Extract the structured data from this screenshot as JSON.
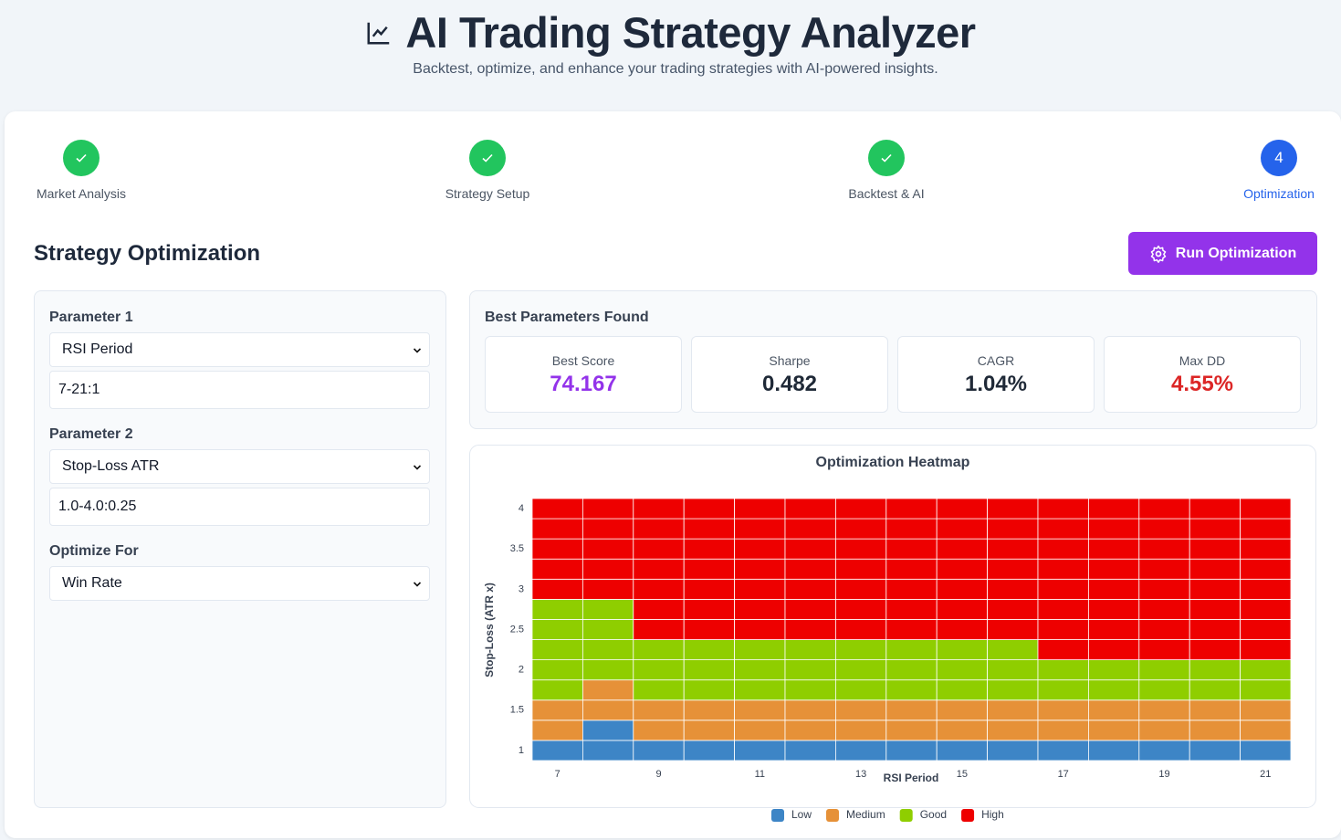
{
  "header": {
    "title": "AI Trading Strategy Analyzer",
    "subtitle": "Backtest, optimize, and enhance your trading strategies with AI-powered insights."
  },
  "steps": [
    {
      "label": "Market Analysis",
      "done": true
    },
    {
      "label": "Strategy Setup",
      "done": true
    },
    {
      "label": "Backtest & AI",
      "done": true
    },
    {
      "label": "Optimization",
      "done": false,
      "number": 4
    }
  ],
  "section": {
    "title": "Strategy Optimization",
    "button": "Run Optimization"
  },
  "form": {
    "fields": [
      {
        "label": "Parameter 1",
        "select": "RSI Period",
        "range": "7-21:1"
      },
      {
        "label": "Parameter 2",
        "select": "Stop-Loss ATR",
        "range": "1.0-4.0:0.25"
      },
      {
        "label": "Optimize For",
        "select": "Win Rate"
      }
    ]
  },
  "best": {
    "title": "Best Parameters Found",
    "metrics": [
      {
        "label": "Best Score",
        "value": "74.167",
        "color": "#9333ea"
      },
      {
        "label": "Sharpe",
        "value": "0.482",
        "color": "#1f2937"
      },
      {
        "label": "CAGR",
        "value": "1.04%",
        "color": "#1f2937"
      },
      {
        "label": "Max DD",
        "value": "4.55%",
        "color": "#dc2626"
      }
    ]
  },
  "chart_data": {
    "type": "heatmap",
    "title": "Optimization Heatmap",
    "x_label": "RSI Period",
    "y_label": "Stop-Loss (ATR x)",
    "x": [
      7,
      8,
      9,
      10,
      11,
      12,
      13,
      14,
      15,
      16,
      17,
      18,
      19,
      20,
      21
    ],
    "y": [
      1,
      1.25,
      1.5,
      1.75,
      2,
      2.25,
      2.5,
      2.75,
      3,
      3.25,
      3.5,
      3.75,
      4
    ],
    "xlim": [
      6.5,
      21.5
    ],
    "xticks": [
      7,
      9,
      11,
      13,
      15,
      17,
      19,
      21
    ],
    "ylim": [
      0.875,
      4.125
    ],
    "yticks": [
      1,
      1.5,
      2,
      2.5,
      3,
      3.5,
      4
    ],
    "levels": [
      {
        "name": "Low",
        "color": "#3d85c6"
      },
      {
        "name": "Medium",
        "color": "#e69138"
      },
      {
        "name": "Good",
        "color": "#8fce00"
      },
      {
        "name": "High",
        "color": "#ee0000"
      }
    ],
    "values": [
      [
        "Low",
        "Low",
        "Low",
        "Low",
        "Low",
        "Low",
        "Low",
        "Low",
        "Low",
        "Low",
        "Low",
        "Low",
        "Low",
        "Low",
        "Low"
      ],
      [
        "Medium",
        "Low",
        "Medium",
        "Medium",
        "Medium",
        "Medium",
        "Medium",
        "Medium",
        "Medium",
        "Medium",
        "Medium",
        "Medium",
        "Medium",
        "Medium",
        "Medium"
      ],
      [
        "Medium",
        "Medium",
        "Medium",
        "Medium",
        "Medium",
        "Medium",
        "Medium",
        "Medium",
        "Medium",
        "Medium",
        "Medium",
        "Medium",
        "Medium",
        "Medium",
        "Medium"
      ],
      [
        "Good",
        "Medium",
        "Good",
        "Good",
        "Good",
        "Good",
        "Good",
        "Good",
        "Good",
        "Good",
        "Good",
        "Good",
        "Good",
        "Good",
        "Good"
      ],
      [
        "Good",
        "Good",
        "Good",
        "Good",
        "Good",
        "Good",
        "Good",
        "Good",
        "Good",
        "Good",
        "Good",
        "Good",
        "Good",
        "Good",
        "Good"
      ],
      [
        "Good",
        "Good",
        "Good",
        "Good",
        "Good",
        "Good",
        "Good",
        "Good",
        "Good",
        "Good",
        "High",
        "High",
        "High",
        "High",
        "High"
      ],
      [
        "Good",
        "Good",
        "High",
        "High",
        "High",
        "High",
        "High",
        "High",
        "High",
        "High",
        "High",
        "High",
        "High",
        "High",
        "High"
      ],
      [
        "Good",
        "Good",
        "High",
        "High",
        "High",
        "High",
        "High",
        "High",
        "High",
        "High",
        "High",
        "High",
        "High",
        "High",
        "High"
      ],
      [
        "High",
        "High",
        "High",
        "High",
        "High",
        "High",
        "High",
        "High",
        "High",
        "High",
        "High",
        "High",
        "High",
        "High",
        "High"
      ],
      [
        "High",
        "High",
        "High",
        "High",
        "High",
        "High",
        "High",
        "High",
        "High",
        "High",
        "High",
        "High",
        "High",
        "High",
        "High"
      ],
      [
        "High",
        "High",
        "High",
        "High",
        "High",
        "High",
        "High",
        "High",
        "High",
        "High",
        "High",
        "High",
        "High",
        "High",
        "High"
      ],
      [
        "High",
        "High",
        "High",
        "High",
        "High",
        "High",
        "High",
        "High",
        "High",
        "High",
        "High",
        "High",
        "High",
        "High",
        "High"
      ],
      [
        "High",
        "High",
        "High",
        "High",
        "High",
        "High",
        "High",
        "High",
        "High",
        "High",
        "High",
        "High",
        "High",
        "High",
        "High"
      ]
    ]
  }
}
